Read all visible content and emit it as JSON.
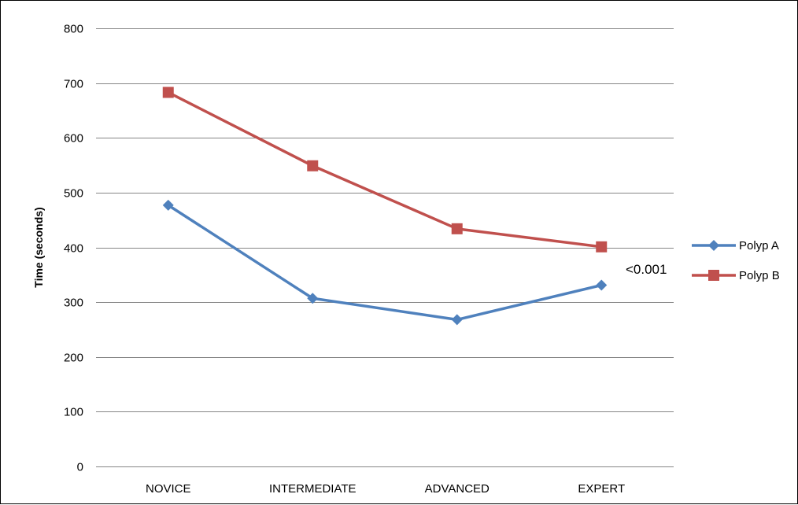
{
  "chart_data": {
    "type": "line",
    "categories": [
      "NOVICE",
      "INTERMEDIATE",
      "ADVANCED",
      "EXPERT"
    ],
    "series": [
      {
        "name": "Polyp A",
        "values": [
          477,
          307,
          268,
          331
        ],
        "color": "#4f81bd",
        "marker": "diamond"
      },
      {
        "name": "Polyp B",
        "values": [
          683,
          549,
          434,
          401
        ],
        "color": "#c0504d",
        "marker": "square"
      }
    ],
    "title": "",
    "xlabel": "",
    "ylabel": "Time (seconds)",
    "ylim": [
      0,
      800
    ],
    "yticks": [
      0,
      100,
      200,
      300,
      400,
      500,
      600,
      700,
      800
    ],
    "grid": true,
    "legend": "right",
    "annotations": [
      {
        "text": "<0.001",
        "near": "EXPERT"
      }
    ]
  }
}
